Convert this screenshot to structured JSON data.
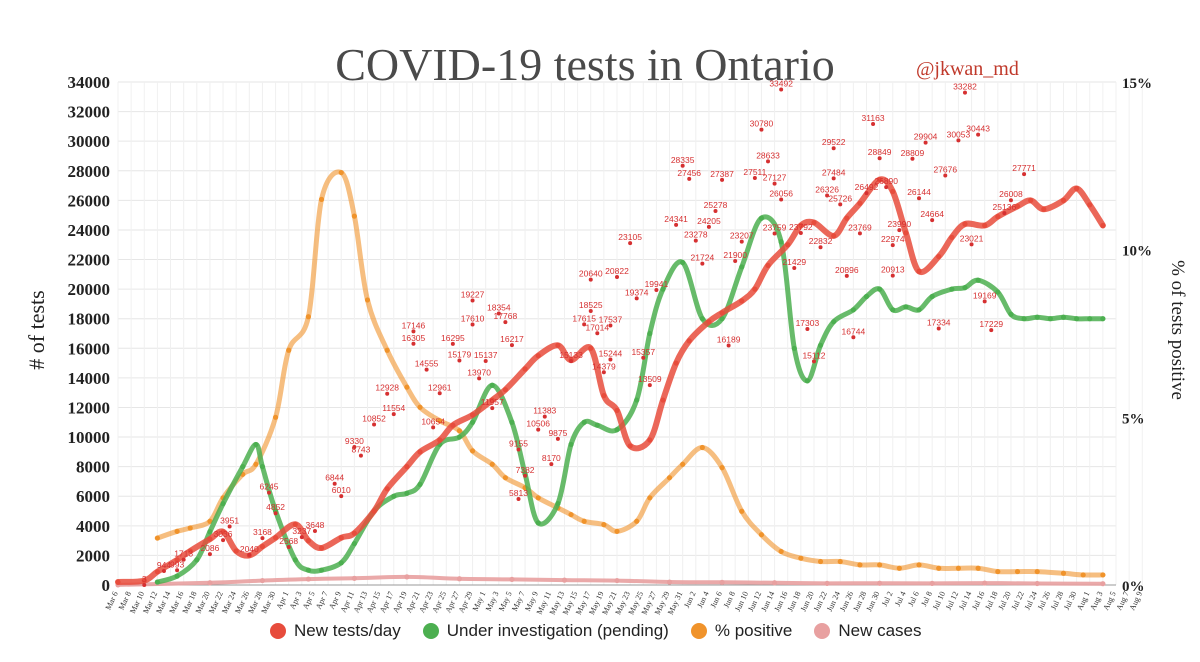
{
  "title": "COVID-19 tests in Ontario",
  "handle": "@jkwan_md",
  "colors": {
    "tests": "#e74c3c",
    "pending": "#4caf50",
    "positive": "#f0932b",
    "cases": "#e8a0a0",
    "label": "#d63031",
    "grid": "#e6e6e6"
  },
  "legend": [
    {
      "name": "New tests/day",
      "color": "#e74c3c"
    },
    {
      "name": "Under investigation (pending)",
      "color": "#4caf50"
    },
    {
      "name": "% positive",
      "color": "#f0932b"
    },
    {
      "name": "New cases",
      "color": "#e8a0a0"
    }
  ],
  "chart_data": {
    "type": "line",
    "title": "COVID-19 tests in Ontario",
    "ylabel": "# of tests",
    "y2label": "% of tests positive",
    "ylim": [
      0,
      34000
    ],
    "y2lim": [
      0,
      15
    ],
    "yticks": [
      "0",
      "2000",
      "4000",
      "6000",
      "8000",
      "10000",
      "12000",
      "14000",
      "16000",
      "18000",
      "20000",
      "22000",
      "24000",
      "26000",
      "28000",
      "30000",
      "32000",
      "34000"
    ],
    "y2ticks": [
      "0%",
      "5%",
      "10%",
      "15%"
    ],
    "grid": true,
    "legend_position": "bottom",
    "xticks": [
      "Mar 6",
      "Mar 8",
      "Mar 10",
      "Mar 12",
      "Mar 14",
      "Mar 16",
      "Mar 18",
      "Mar 20",
      "Mar 22",
      "Mar 24",
      "Mar 26",
      "Mar 28",
      "Mar 30",
      "Apr 1",
      "Apr 3",
      "Apr 5",
      "Apr 7",
      "Apr 9",
      "Apr 11",
      "Apr 13",
      "Apr 15",
      "Apr 17",
      "Apr 19",
      "Apr 21",
      "Apr 23",
      "Apr 25",
      "Apr 27",
      "Apr 29",
      "May 1",
      "May 3",
      "May 5",
      "May 7",
      "May 9",
      "May 11",
      "May 13",
      "May 15",
      "May 17",
      "May 19",
      "May 21",
      "May 23",
      "May 25",
      "May 27",
      "May 29",
      "May 31",
      "Jun 2",
      "Jun 4",
      "Jun 6",
      "Jun 8",
      "Jun 10",
      "Jun 12",
      "Jun 14",
      "Jun 16",
      "Jun 18",
      "Jun 20",
      "Jun 22",
      "Jun 24",
      "Jun 26",
      "Jun 28",
      "Jun 30",
      "Jul 2",
      "Jul 4",
      "Jul 6",
      "Jul 8",
      "Jul 10",
      "Jul 12",
      "Jul 14",
      "Jul 16",
      "Jul 18",
      "Jul 20",
      "Jul 22",
      "Jul 24",
      "Jul 26",
      "Jul 28",
      "Jul 30",
      "Aug 1",
      "Aug 3",
      "Aug 5",
      "Aug 7",
      "Aug 9"
    ],
    "series": [
      {
        "name": "New tests/day",
        "key": "tests",
        "x": [
          6,
          10,
          12,
          15,
          17,
          20,
          22,
          24,
          26,
          28,
          30,
          33,
          35,
          37,
          40,
          42,
          45,
          47,
          50,
          52,
          55,
          57,
          60,
          63,
          65,
          68,
          70,
          73,
          75,
          78,
          80,
          82,
          84,
          87,
          89,
          91,
          93,
          96,
          98,
          101,
          103,
          105,
          108,
          110,
          112,
          115,
          117,
          119,
          122,
          124,
          126,
          128,
          131,
          133,
          135,
          138,
          140,
          143,
          145,
          147,
          150,
          152,
          154,
          156
        ],
        "values": [
          200,
          300,
          900,
          1700,
          2300,
          3100,
          3600,
          2300,
          2000,
          2600,
          3200,
          4100,
          3000,
          2500,
          3200,
          3500,
          5000,
          6500,
          8000,
          9000,
          9800,
          10800,
          11500,
          12500,
          13200,
          14600,
          15500,
          16200,
          15200,
          16000,
          12800,
          11800,
          9400,
          9800,
          12500,
          15000,
          16500,
          17800,
          18400,
          19200,
          20000,
          21600,
          23000,
          24300,
          24500,
          23600,
          24800,
          25800,
          27400,
          26600,
          23800,
          21200,
          22200,
          23500,
          24400,
          24300,
          24900,
          25600,
          26000,
          25400,
          26000,
          26800,
          25700,
          24300
        ]
      },
      {
        "name": "Under investigation (pending)",
        "key": "pending",
        "x": [
          12,
          15,
          18,
          20,
          22,
          25,
          27,
          28,
          30,
          33,
          35,
          37,
          40,
          42,
          45,
          48,
          50,
          52,
          55,
          58,
          60,
          63,
          66,
          68,
          70,
          73,
          75,
          77,
          79,
          82,
          85,
          87,
          89,
          92,
          95,
          98,
          101,
          104,
          107,
          109,
          111,
          113,
          115,
          118,
          120,
          122,
          124,
          126,
          128,
          130,
          133,
          135,
          137,
          140,
          142,
          144,
          146,
          148,
          150,
          152,
          154,
          156
        ],
        "values": [
          200,
          600,
          1700,
          3600,
          5500,
          8000,
          9500,
          8000,
          5000,
          1700,
          1000,
          1000,
          1500,
          2800,
          5000,
          6000,
          6200,
          6800,
          9500,
          10000,
          11000,
          13500,
          11000,
          7500,
          4200,
          5500,
          9500,
          11000,
          10800,
          10500,
          12500,
          17000,
          20000,
          21800,
          18000,
          18000,
          21500,
          24800,
          23200,
          16000,
          13800,
          16200,
          17800,
          18600,
          19500,
          20000,
          18600,
          18800,
          18600,
          19500,
          20000,
          20100,
          20600,
          19800,
          18300,
          18000,
          18100,
          18000,
          18100,
          18000,
          18000,
          18000
        ]
      },
      {
        "name": "% positive",
        "key": "positive",
        "x": [
          12,
          15,
          17,
          20,
          22,
          25,
          27,
          30,
          32,
          35,
          37,
          40,
          42,
          44,
          47,
          50,
          52,
          55,
          58,
          60,
          63,
          65,
          68,
          70,
          73,
          75,
          77,
          80,
          82,
          85,
          87,
          90,
          92,
          95,
          98,
          101,
          104,
          107,
          110,
          113,
          116,
          119,
          122,
          125,
          128,
          131,
          134,
          137,
          140,
          143,
          146,
          150,
          153,
          156
        ],
        "values": [
          1.4,
          1.6,
          1.7,
          1.9,
          2.6,
          3.3,
          3.6,
          5.0,
          7.0,
          8.0,
          11.5,
          12.3,
          11.0,
          8.5,
          7.0,
          5.9,
          5.3,
          4.9,
          4.6,
          4.0,
          3.6,
          3.2,
          2.9,
          2.6,
          2.3,
          2.1,
          1.9,
          1.8,
          1.6,
          1.9,
          2.6,
          3.2,
          3.6,
          4.1,
          3.5,
          2.2,
          1.5,
          1.0,
          0.8,
          0.7,
          0.7,
          0.6,
          0.6,
          0.5,
          0.6,
          0.5,
          0.5,
          0.5,
          0.4,
          0.4,
          0.4,
          0.35,
          0.3,
          0.3
        ]
      },
      {
        "name": "New cases",
        "key": "cases",
        "x": [
          6,
          20,
          28,
          35,
          42,
          50,
          58,
          66,
          74,
          82,
          90,
          98,
          106,
          114,
          122,
          130,
          138,
          146,
          156
        ],
        "values": [
          10,
          150,
          300,
          400,
          450,
          550,
          420,
          380,
          330,
          300,
          200,
          180,
          150,
          110,
          120,
          110,
          130,
          100,
          90
        ]
      }
    ],
    "data_labels": [
      {
        "x": 10,
        "v": 3,
        "t": "3"
      },
      {
        "x": 13,
        "v": 944,
        "t": "944"
      },
      {
        "x": 15,
        "v": 993,
        "t": "993"
      },
      {
        "x": 16,
        "v": 1713,
        "t": "1713"
      },
      {
        "x": 20,
        "v": 2086,
        "t": "2086"
      },
      {
        "x": 22,
        "v": 3036,
        "t": "3036"
      },
      {
        "x": 23,
        "v": 3951,
        "t": "3951"
      },
      {
        "x": 26,
        "v": 2040,
        "t": "2040"
      },
      {
        "x": 28,
        "v": 3168,
        "t": "3168"
      },
      {
        "x": 29,
        "v": 6245,
        "t": "6245"
      },
      {
        "x": 30,
        "v": 4852,
        "t": "4852"
      },
      {
        "x": 32,
        "v": 2568,
        "t": "2568"
      },
      {
        "x": 34,
        "v": 3237,
        "t": "3237"
      },
      {
        "x": 36,
        "v": 3648,
        "t": "3648"
      },
      {
        "x": 39,
        "v": 6844,
        "t": "6844"
      },
      {
        "x": 40,
        "v": 6010,
        "t": "6010"
      },
      {
        "x": 42,
        "v": 9330,
        "t": "9330"
      },
      {
        "x": 43,
        "v": 8743,
        "t": "8743"
      },
      {
        "x": 45,
        "v": 10852,
        "t": "10852"
      },
      {
        "x": 47,
        "v": 12928,
        "t": "12928"
      },
      {
        "x": 48,
        "v": 11554,
        "t": "11554"
      },
      {
        "x": 51,
        "v": 17146,
        "t": "17146"
      },
      {
        "x": 51,
        "v": 16305,
        "t": "16305"
      },
      {
        "x": 53,
        "v": 14555,
        "t": "14555"
      },
      {
        "x": 54,
        "v": 10654,
        "t": "10654"
      },
      {
        "x": 55,
        "v": 12961,
        "t": "12961"
      },
      {
        "x": 57,
        "v": 16295,
        "t": "16295"
      },
      {
        "x": 58,
        "v": 15179,
        "t": "15179"
      },
      {
        "x": 60,
        "v": 19227,
        "t": "19227"
      },
      {
        "x": 60,
        "v": 17610,
        "t": "17610"
      },
      {
        "x": 61,
        "v": 13970,
        "t": "13970"
      },
      {
        "x": 62,
        "v": 15137,
        "t": "15137"
      },
      {
        "x": 63,
        "v": 11957,
        "t": "11957"
      },
      {
        "x": 64,
        "v": 18354,
        "t": "18354"
      },
      {
        "x": 65,
        "v": 17768,
        "t": "17768"
      },
      {
        "x": 66,
        "v": 16217,
        "t": "16217"
      },
      {
        "x": 67,
        "v": 9155,
        "t": "9155"
      },
      {
        "x": 68,
        "v": 7382,
        "t": "7382"
      },
      {
        "x": 67,
        "v": 5813,
        "t": "5813"
      },
      {
        "x": 70,
        "v": 10506,
        "t": "10506"
      },
      {
        "x": 71,
        "v": 11383,
        "t": "11383"
      },
      {
        "x": 72,
        "v": 8170,
        "t": "8170"
      },
      {
        "x": 73,
        "v": 9875,
        "t": "9875"
      },
      {
        "x": 75,
        "v": 15133,
        "t": "15133"
      },
      {
        "x": 77,
        "v": 17615,
        "t": "17615"
      },
      {
        "x": 78,
        "v": 20640,
        "t": "20640"
      },
      {
        "x": 78,
        "v": 18525,
        "t": "18525"
      },
      {
        "x": 79,
        "v": 17014,
        "t": "17014"
      },
      {
        "x": 80,
        "v": 14379,
        "t": "14379"
      },
      {
        "x": 81,
        "v": 15244,
        "t": "15244"
      },
      {
        "x": 81,
        "v": 17537,
        "t": "17537"
      },
      {
        "x": 82,
        "v": 20822,
        "t": "20822"
      },
      {
        "x": 84,
        "v": 23105,
        "t": "23105"
      },
      {
        "x": 85,
        "v": 19374,
        "t": "19374"
      },
      {
        "x": 86,
        "v": 15357,
        "t": "15357"
      },
      {
        "x": 87,
        "v": 13509,
        "t": "13509"
      },
      {
        "x": 88,
        "v": 19941,
        "t": "19941"
      },
      {
        "x": 91,
        "v": 24341,
        "t": "24341"
      },
      {
        "x": 92,
        "v": 28335,
        "t": "28335"
      },
      {
        "x": 93,
        "v": 27456,
        "t": "27456"
      },
      {
        "x": 94,
        "v": 23278,
        "t": "23278"
      },
      {
        "x": 95,
        "v": 21724,
        "t": "21724"
      },
      {
        "x": 96,
        "v": 24205,
        "t": "24205"
      },
      {
        "x": 97,
        "v": 25278,
        "t": "25278"
      },
      {
        "x": 98,
        "v": 27387,
        "t": "27387"
      },
      {
        "x": 99,
        "v": 16189,
        "t": "16189"
      },
      {
        "x": 100,
        "v": 21900,
        "t": "21900"
      },
      {
        "x": 101,
        "v": 23207,
        "t": "23207"
      },
      {
        "x": 103,
        "v": 27511,
        "t": "27511"
      },
      {
        "x": 104,
        "v": 30780,
        "t": "30780"
      },
      {
        "x": 105,
        "v": 28633,
        "t": "28633"
      },
      {
        "x": 106,
        "v": 23759,
        "t": "23759"
      },
      {
        "x": 106,
        "v": 27127,
        "t": "27127"
      },
      {
        "x": 107,
        "v": 33492,
        "t": "33492"
      },
      {
        "x": 107,
        "v": 26056,
        "t": "26056"
      },
      {
        "x": 109,
        "v": 21429,
        "t": "21429"
      },
      {
        "x": 110,
        "v": 23792,
        "t": "23792"
      },
      {
        "x": 111,
        "v": 17303,
        "t": "17303"
      },
      {
        "x": 112,
        "v": 15112,
        "t": "15112"
      },
      {
        "x": 113,
        "v": 22832,
        "t": "22832"
      },
      {
        "x": 114,
        "v": 26326,
        "t": "26326"
      },
      {
        "x": 115,
        "v": 29522,
        "t": "29522"
      },
      {
        "x": 115,
        "v": 27484,
        "t": "27484"
      },
      {
        "x": 116,
        "v": 25726,
        "t": "25726"
      },
      {
        "x": 117,
        "v": 20896,
        "t": "20896"
      },
      {
        "x": 118,
        "v": 16744,
        "t": "16744"
      },
      {
        "x": 119,
        "v": 23769,
        "t": "23769"
      },
      {
        "x": 120,
        "v": 26492,
        "t": "26492"
      },
      {
        "x": 121,
        "v": 31163,
        "t": "31163"
      },
      {
        "x": 122,
        "v": 28849,
        "t": "28849"
      },
      {
        "x": 123,
        "v": 26890,
        "t": "26890"
      },
      {
        "x": 124,
        "v": 20913,
        "t": "20913"
      },
      {
        "x": 124,
        "v": 22974,
        "t": "22974"
      },
      {
        "x": 125,
        "v": 23990,
        "t": "23990"
      },
      {
        "x": 127,
        "v": 28809,
        "t": "28809"
      },
      {
        "x": 128,
        "v": 26144,
        "t": "26144"
      },
      {
        "x": 129,
        "v": 29904,
        "t": "29904"
      },
      {
        "x": 130,
        "v": 24664,
        "t": "24664"
      },
      {
        "x": 131,
        "v": 17334,
        "t": "17334"
      },
      {
        "x": 132,
        "v": 27676,
        "t": "27676"
      },
      {
        "x": 134,
        "v": 30053,
        "t": "30053"
      },
      {
        "x": 135,
        "v": 33282,
        "t": "33282"
      },
      {
        "x": 136,
        "v": 23021,
        "t": "23021"
      },
      {
        "x": 137,
        "v": 30443,
        "t": "30443"
      },
      {
        "x": 138,
        "v": 19169,
        "t": "19169"
      },
      {
        "x": 139,
        "v": 17229,
        "t": "17229"
      },
      {
        "x": 141,
        "v": 25136,
        "t": "25136"
      },
      {
        "x": 142,
        "v": 26008,
        "t": "26008"
      },
      {
        "x": 144,
        "v": 27771,
        "t": "27771"
      }
    ]
  }
}
